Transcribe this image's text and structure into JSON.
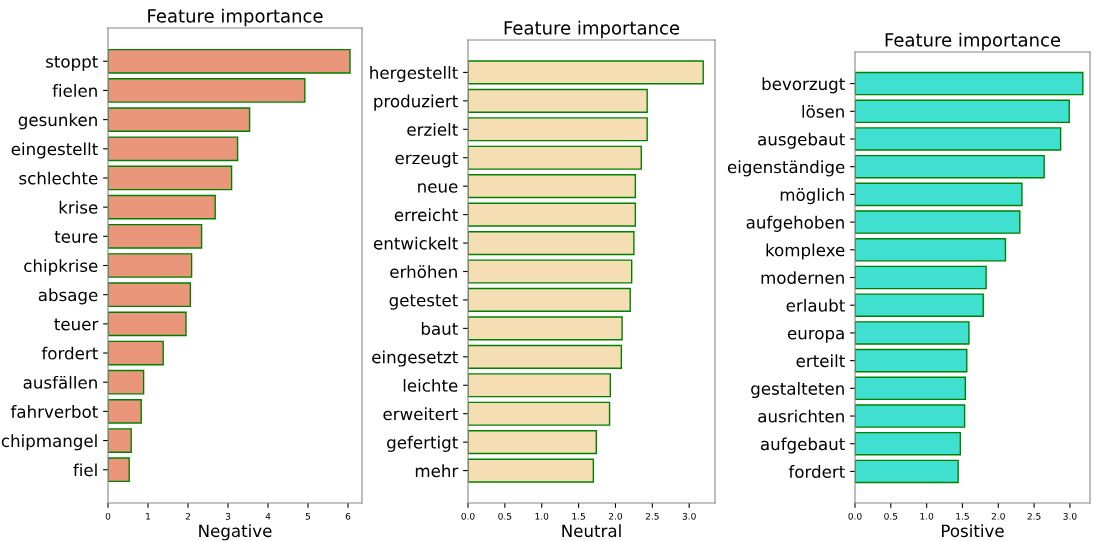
{
  "chart_data": [
    {
      "type": "bar",
      "orientation": "horizontal",
      "title": "Feature importance",
      "xlabel": "Negative",
      "color": "#e9967a",
      "categories": [
        "stoppt",
        "fielen",
        "gesunken",
        "eingestellt",
        "schlechte",
        "krise",
        "teure",
        "chipkrise",
        "absage",
        "teuer",
        "fordert",
        "ausfällen",
        "fahrverbot",
        "chipmangel",
        "fiel"
      ],
      "values": [
        6.05,
        4.92,
        3.54,
        3.24,
        3.09,
        2.68,
        2.34,
        2.09,
        2.06,
        1.95,
        1.38,
        0.89,
        0.83,
        0.58,
        0.53
      ],
      "xlim": [
        0,
        6.35
      ],
      "xticks": [
        0,
        1,
        2,
        3,
        4,
        5,
        6
      ],
      "grid": false
    },
    {
      "type": "bar",
      "orientation": "horizontal",
      "title": "Feature importance",
      "xlabel": "Neutral",
      "color": "#f5deb3",
      "categories": [
        "hergestellt",
        "produziert",
        "erzielt",
        "erzeugt",
        "neue",
        "erreicht",
        "entwickelt",
        "erhöhen",
        "getestet",
        "baut",
        "eingesetzt",
        "leichte",
        "erweitert",
        "gefertigt",
        "mehr"
      ],
      "values": [
        3.19,
        2.43,
        2.43,
        2.35,
        2.27,
        2.27,
        2.25,
        2.22,
        2.2,
        2.09,
        2.08,
        1.93,
        1.92,
        1.74,
        1.7
      ],
      "xlim": [
        0,
        3.35
      ],
      "xticks": [
        {
          "value": 0,
          "label": "0.0"
        },
        {
          "value": 0.5,
          "label": "0.5"
        },
        {
          "value": 1,
          "label": "1.0"
        },
        {
          "value": 1.5,
          "label": "1.5"
        },
        {
          "value": 2,
          "label": "2.0"
        },
        {
          "value": 2.5,
          "label": "2.5"
        },
        {
          "value": 3,
          "label": "3.0"
        }
      ],
      "grid": false
    },
    {
      "type": "bar",
      "orientation": "horizontal",
      "title": "Feature importance",
      "xlabel": "Positive",
      "color": "#40e0d0",
      "categories": [
        "bevorzugt",
        "lösen",
        "ausgebaut",
        "eigenständige",
        "möglich",
        "aufgehoben",
        "komplexe",
        "modernen",
        "erlaubt",
        "europa",
        "erteilt",
        "gestalteten",
        "ausrichten",
        "aufgebaut",
        "fordert"
      ],
      "values": [
        3.18,
        2.99,
        2.87,
        2.64,
        2.33,
        2.3,
        2.1,
        1.83,
        1.79,
        1.59,
        1.56,
        1.54,
        1.53,
        1.47,
        1.44
      ],
      "xlim": [
        0,
        3.28
      ],
      "xticks": [
        {
          "value": 0,
          "label": "0.0"
        },
        {
          "value": 0.5,
          "label": "0.5"
        },
        {
          "value": 1,
          "label": "1.0"
        },
        {
          "value": 1.5,
          "label": "1.5"
        },
        {
          "value": 2,
          "label": "2.0"
        },
        {
          "value": 2.5,
          "label": "2.5"
        },
        {
          "value": 3,
          "label": "3.0"
        }
      ],
      "grid": false
    }
  ]
}
